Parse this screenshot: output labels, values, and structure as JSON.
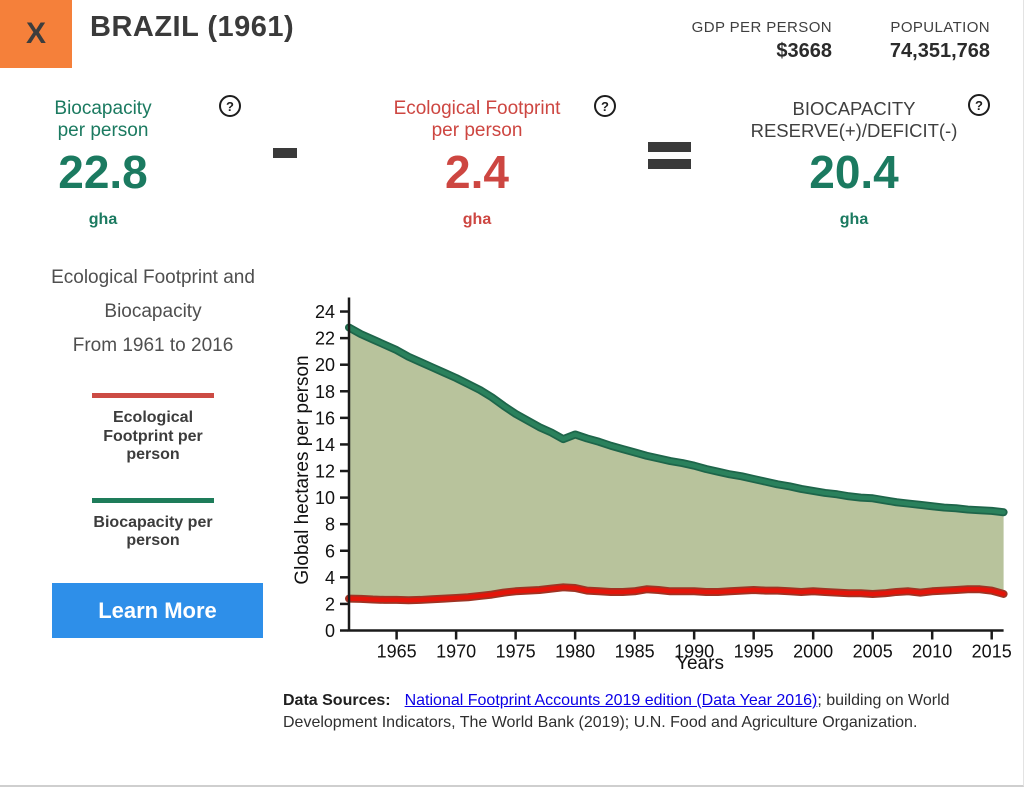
{
  "header": {
    "close_label": "X",
    "close_color": "#f5803a",
    "title": "BRAZIL (1961)",
    "gdp_label": "GDP PER PERSON",
    "gdp_value": "$3668",
    "population_label": "POPULATION",
    "population_value": "74,351,768"
  },
  "equation": {
    "help_icon": "?",
    "biocapacity": {
      "label_line1": "Biocapacity",
      "label_line2": "per person",
      "value": "22.8",
      "unit": "gha",
      "color": "#1b7a60"
    },
    "footprint": {
      "label_line1": "Ecological Footprint",
      "label_line2": "per person",
      "value": "2.4",
      "unit": "gha",
      "color": "#cd4641"
    },
    "reserve": {
      "label_line1": "BIOCAPACITY",
      "label_line2": "RESERVE(+)/DEFICIT(-)",
      "value": "20.4",
      "unit": "gha",
      "color": "#1b7a60"
    }
  },
  "sidebar": {
    "description_lines": [
      "Ecological Footprint and",
      "Biocapacity",
      "From 1961 to 2016"
    ],
    "legend": [
      {
        "label": "Ecological Footprint per person",
        "color": "#cc4b44"
      },
      {
        "label": "Biocapacity per person",
        "color": "#1e7c5a"
      }
    ],
    "learn_more_label": "Learn More",
    "learn_more_color": "#2e8fe9"
  },
  "chart_data": {
    "type": "area",
    "xlabel": "Years",
    "ylabel": "Global hectares per person",
    "xlim": [
      1961,
      2016
    ],
    "ylim": [
      0,
      24
    ],
    "xticks": [
      1965,
      1970,
      1975,
      1980,
      1985,
      1990,
      1995,
      2000,
      2005,
      2010,
      2015
    ],
    "yticks": [
      0,
      2,
      4,
      6,
      8,
      10,
      12,
      14,
      16,
      18,
      20,
      22,
      24
    ],
    "grid": false,
    "legend_position": "left-panel",
    "fill_between_color": "#b8c39c",
    "years": [
      1961,
      1962,
      1963,
      1964,
      1965,
      1966,
      1967,
      1968,
      1969,
      1970,
      1971,
      1972,
      1973,
      1974,
      1975,
      1976,
      1977,
      1978,
      1979,
      1980,
      1981,
      1982,
      1983,
      1984,
      1985,
      1986,
      1987,
      1988,
      1989,
      1990,
      1991,
      1992,
      1993,
      1994,
      1995,
      1996,
      1997,
      1998,
      1999,
      2000,
      2001,
      2002,
      2003,
      2004,
      2005,
      2006,
      2007,
      2008,
      2009,
      2010,
      2011,
      2012,
      2013,
      2014,
      2015,
      2016
    ],
    "series": [
      {
        "name": "Biocapacity per person",
        "color": "#2a815c",
        "edge_color": "#1e654a",
        "values": [
          22.8,
          22.3,
          21.9,
          21.5,
          21.1,
          20.6,
          20.2,
          19.8,
          19.4,
          19.0,
          18.55,
          18.1,
          17.55,
          16.9,
          16.3,
          15.8,
          15.3,
          14.9,
          14.4,
          14.75,
          14.45,
          14.2,
          13.9,
          13.65,
          13.4,
          13.15,
          12.95,
          12.75,
          12.6,
          12.4,
          12.15,
          11.95,
          11.75,
          11.6,
          11.4,
          11.2,
          11.0,
          10.85,
          10.65,
          10.5,
          10.35,
          10.25,
          10.1,
          10.0,
          9.95,
          9.8,
          9.65,
          9.55,
          9.45,
          9.35,
          9.25,
          9.2,
          9.1,
          9.05,
          9.0,
          8.9
        ]
      },
      {
        "name": "Ecological Footprint per person",
        "color": "#e3150a",
        "edge_color": "#9e3424",
        "values": [
          2.4,
          2.38,
          2.33,
          2.3,
          2.3,
          2.28,
          2.3,
          2.35,
          2.4,
          2.45,
          2.5,
          2.6,
          2.7,
          2.85,
          2.95,
          3.0,
          3.05,
          3.15,
          3.25,
          3.2,
          3.0,
          2.95,
          2.9,
          2.9,
          2.95,
          3.1,
          3.05,
          2.95,
          2.95,
          2.95,
          2.9,
          2.9,
          2.95,
          3.0,
          3.05,
          3.0,
          3.0,
          2.95,
          2.9,
          2.95,
          2.9,
          2.85,
          2.8,
          2.8,
          2.75,
          2.8,
          2.9,
          2.95,
          2.85,
          2.95,
          3.0,
          3.05,
          3.1,
          3.1,
          3.0,
          2.75
        ]
      }
    ]
  },
  "footer": {
    "data_sources_label": "Data Sources:",
    "link_text": "National Footprint Accounts 2019 edition (Data Year 2016)",
    "suffix_text": "; building on World Development Indicators, The World Bank (2019); U.N. Food and Agriculture Organization.",
    "link_color": "#0b00e6"
  }
}
